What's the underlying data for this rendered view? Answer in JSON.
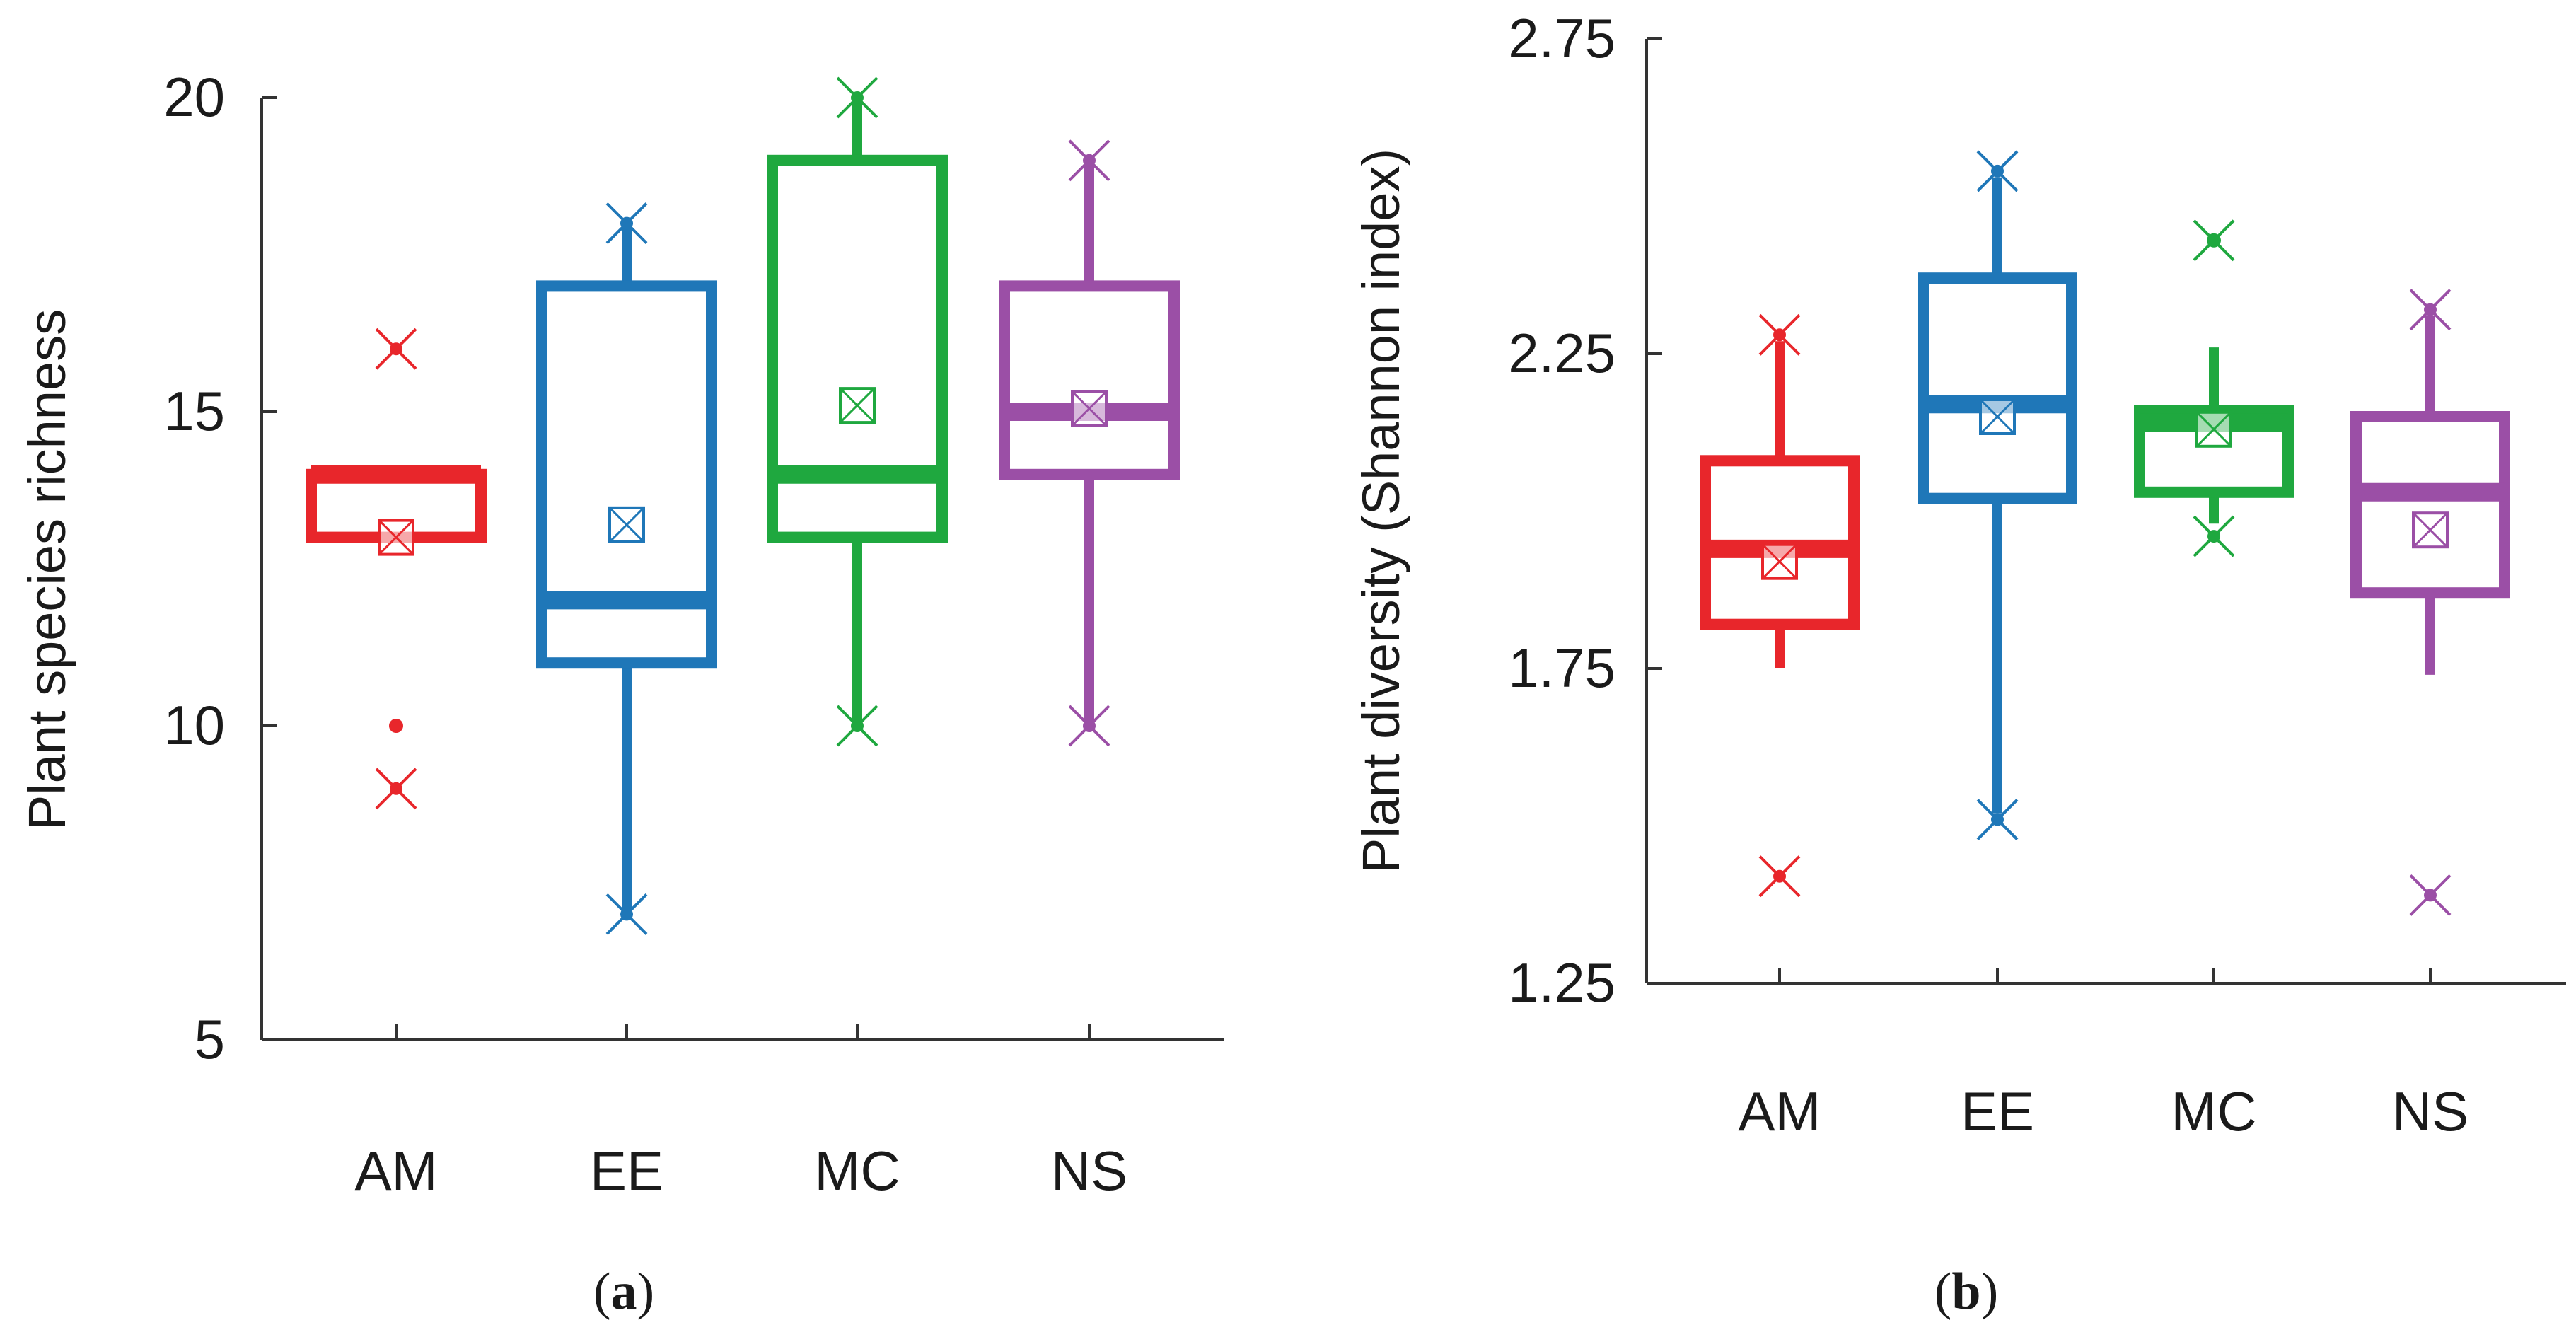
{
  "chart_data": [
    {
      "type": "boxplot",
      "panel_label": "a",
      "ylabel": "Plant species richness",
      "ylim": [
        5,
        20
      ],
      "yticks": [
        5,
        10,
        15,
        20
      ],
      "categories": [
        "AM",
        "EE",
        "MC",
        "NS"
      ],
      "boxes": [
        {
          "name": "AM",
          "color": "#e8262b",
          "whisker_low": 13,
          "q1": 13,
          "median": 14,
          "q3": 14,
          "whisker_high": 14,
          "mean": 13,
          "outliers": [
            10
          ],
          "min": 9,
          "max": 16
        },
        {
          "name": "EE",
          "color": "#1f77b8",
          "whisker_low": 7,
          "q1": 11,
          "median": 12,
          "q3": 17,
          "whisker_high": 18,
          "mean": 13.2,
          "outliers": [],
          "min": 7,
          "max": 18
        },
        {
          "name": "MC",
          "color": "#1fa83f",
          "whisker_low": 10,
          "q1": 13,
          "median": 14,
          "q3": 19,
          "whisker_high": 20,
          "mean": 15.1,
          "outliers": [],
          "min": 10,
          "max": 20
        },
        {
          "name": "NS",
          "color": "#9b4fa6",
          "whisker_low": 10,
          "q1": 14,
          "median": 15,
          "q3": 17,
          "whisker_high": 19,
          "mean": 15.05,
          "outliers": [],
          "min": 10,
          "max": 19
        }
      ]
    },
    {
      "type": "boxplot",
      "panel_label": "b",
      "ylabel": "Plant diversity (Shannon index)",
      "ylim": [
        1.25,
        2.75
      ],
      "yticks": [
        "1.25",
        "1.75",
        "2.25",
        "2.75"
      ],
      "categories": [
        "AM",
        "EE",
        "MC",
        "NS"
      ],
      "boxes": [
        {
          "name": "AM",
          "color": "#e8262b",
          "whisker_low": 1.75,
          "q1": 1.82,
          "median": 1.94,
          "q3": 2.08,
          "whisker_high": 2.27,
          "mean": 1.92,
          "outliers": [],
          "min": 1.42,
          "max": 2.28
        },
        {
          "name": "EE",
          "color": "#1f77b8",
          "whisker_low": 1.52,
          "q1": 2.02,
          "median": 2.17,
          "q3": 2.37,
          "whisker_high": 2.53,
          "mean": 2.15,
          "outliers": [],
          "min": 1.51,
          "max": 2.54
        },
        {
          "name": "MC",
          "color": "#1fa83f",
          "whisker_low": 1.98,
          "q1": 2.03,
          "median": 2.14,
          "q3": 2.16,
          "whisker_high": 2.26,
          "mean": 2.13,
          "outliers": [
            2.43
          ],
          "min": 1.96,
          "max": 2.43
        },
        {
          "name": "NS",
          "color": "#9b4fa6",
          "whisker_low": 1.74,
          "q1": 1.87,
          "median": 2.03,
          "q3": 2.15,
          "whisker_high": 2.31,
          "mean": 1.97,
          "outliers": [],
          "min": 1.39,
          "max": 2.32
        }
      ]
    }
  ]
}
